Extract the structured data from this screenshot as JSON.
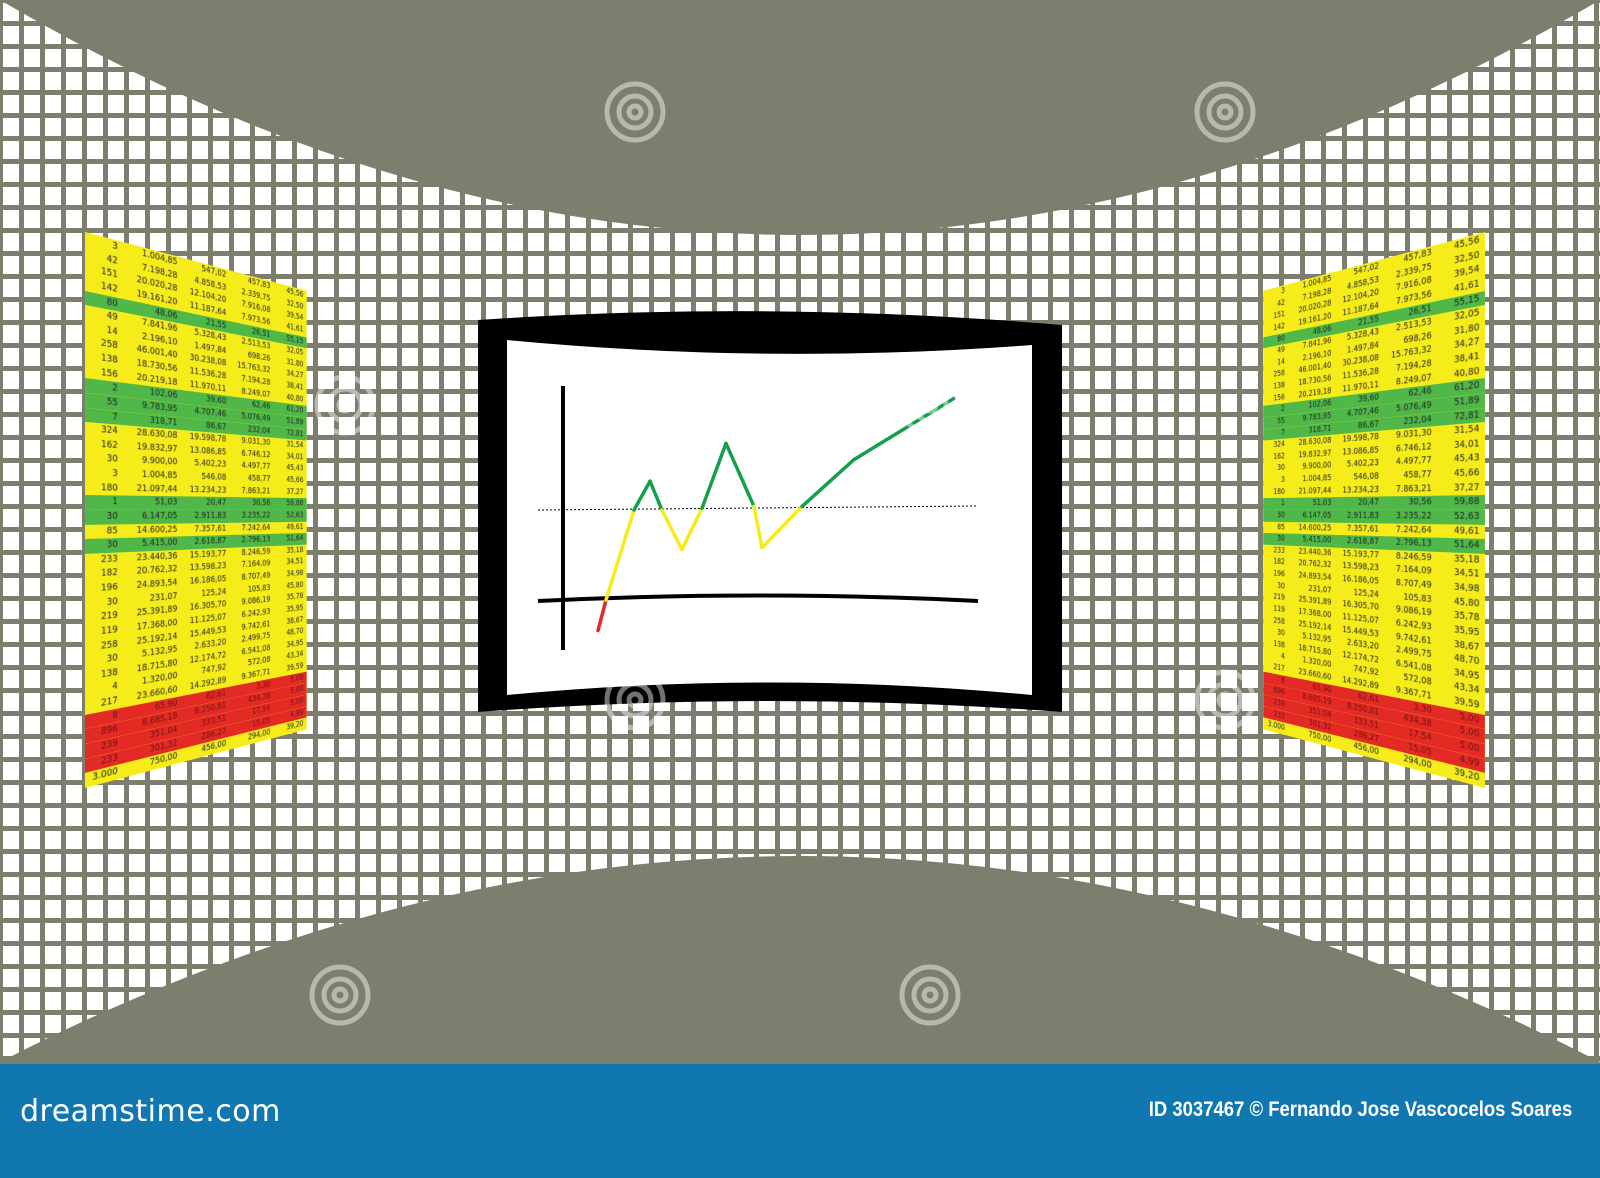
{
  "colors": {
    "background": "#7e7e6e",
    "tile": "#ffffff",
    "yellow": "#f5ec1a",
    "green": "#4fb848",
    "red": "#e42a24",
    "chart_green": "#14a04a",
    "banner": "#1077b0"
  },
  "table": {
    "columns": [
      [
        "3",
        "42",
        "151",
        "142",
        "80",
        "49",
        "14",
        "258",
        "138",
        "156",
        "2",
        "55",
        "7",
        "324",
        "162",
        "30",
        "3",
        "180",
        "1",
        "30",
        "85",
        "30",
        "233",
        "182",
        "196",
        "30",
        "219",
        "119",
        "258",
        "30",
        "138",
        "4",
        "217",
        "8",
        "896",
        "239",
        "233",
        "3.000"
      ],
      [
        "1.004,85",
        "7.198,28",
        "20.020,28",
        "19.161,20",
        "48,06",
        "7.841,96",
        "2.196,10",
        "46.001,40",
        "18.730,56",
        "20.219,18",
        "102,06",
        "9.783,95",
        "318,71",
        "28.630,08",
        "19.832,97",
        "9.900,00",
        "1.004,85",
        "21.097,44",
        "51,03",
        "6.147,05",
        "14.600,25",
        "5.415,00",
        "23.440,36",
        "20.762,32",
        "24.893,54",
        "231,07",
        "25.391,89",
        "17.368,00",
        "25.192,14",
        "5.132,95",
        "18.715,80",
        "1.320,00",
        "23.660,60",
        "65,90",
        "8.685,19",
        "351,04",
        "301,32",
        "750,00"
      ],
      [
        "547,02",
        "4.858,53",
        "12.104,20",
        "11.187,64",
        "21,55",
        "5.328,43",
        "1.497,84",
        "30.238,08",
        "11.536,28",
        "11.970,11",
        "39,60",
        "4.707,46",
        "86,67",
        "19.598,78",
        "13.086,85",
        "5.402,23",
        "546,08",
        "13.234,23",
        "20,47",
        "2.911,83",
        "7.357,61",
        "2.618,87",
        "15.193,77",
        "13.598,23",
        "16.186,05",
        "125,24",
        "16.305,70",
        "11.125,07",
        "15.449,53",
        "2.633,20",
        "12.174,72",
        "747,92",
        "14.292,89",
        "62,61",
        "8.250,81",
        "333,51",
        "286,27",
        "456,00"
      ],
      [
        "457,83",
        "2.339,75",
        "7.916,08",
        "7.973,56",
        "26,51",
        "2.513,53",
        "698,26",
        "15.763,32",
        "7.194,28",
        "8.249,07",
        "62,46",
        "5.076,49",
        "232,04",
        "9.031,30",
        "6.746,12",
        "4.497,77",
        "458,77",
        "7.863,21",
        "30,56",
        "3.235,22",
        "7.242,64",
        "2.796,13",
        "8.246,59",
        "7.164,09",
        "8.707,49",
        "105,83",
        "9.086,19",
        "6.242,93",
        "9.742,61",
        "2.499,75",
        "6.541,08",
        "572,08",
        "9.367,71",
        "3,30",
        "434,38",
        "17,54",
        "15,05",
        "294,00"
      ],
      [
        "45,56",
        "32,50",
        "39,54",
        "41,61",
        "55,15",
        "32,05",
        "31,80",
        "34,27",
        "38,41",
        "40,80",
        "61,20",
        "51,89",
        "72,81",
        "31,54",
        "34,01",
        "45,43",
        "45,66",
        "37,27",
        "59,88",
        "52,63",
        "49,61",
        "51,64",
        "35,18",
        "34,51",
        "34,98",
        "45,80",
        "35,78",
        "35,95",
        "38,67",
        "48,70",
        "34,95",
        "43,34",
        "39,59",
        "5,00",
        "5,00",
        "5,00",
        "4,99",
        "39,20"
      ]
    ],
    "green_rows": [
      4,
      10,
      11,
      12,
      18,
      19,
      21
    ],
    "red_rows": [
      33,
      34,
      35,
      36
    ]
  },
  "chart_data": {
    "type": "line",
    "title": "",
    "xlabel": "",
    "ylabel": "",
    "xlim": [
      0,
      105
    ],
    "ylim": [
      -25,
      120
    ],
    "grid": false,
    "threshold": 50,
    "x": [
      15,
      17,
      24,
      28,
      31,
      36,
      41,
      47,
      54,
      56,
      66,
      79,
      104
    ],
    "values": [
      -17,
      0,
      50,
      66,
      50,
      28,
      51,
      87,
      52,
      29,
      52,
      78,
      112
    ],
    "segment_colors": {
      "below_zero": "#e42a24",
      "below_threshold": "#f5ec1a",
      "above_threshold": "#14a04a"
    }
  },
  "watermark": {
    "text": "dreamstime"
  },
  "banner": {
    "brand": "dreamstime.com",
    "credit": "ID 3037467 © Fernando Jose Vascocelos Soares"
  }
}
